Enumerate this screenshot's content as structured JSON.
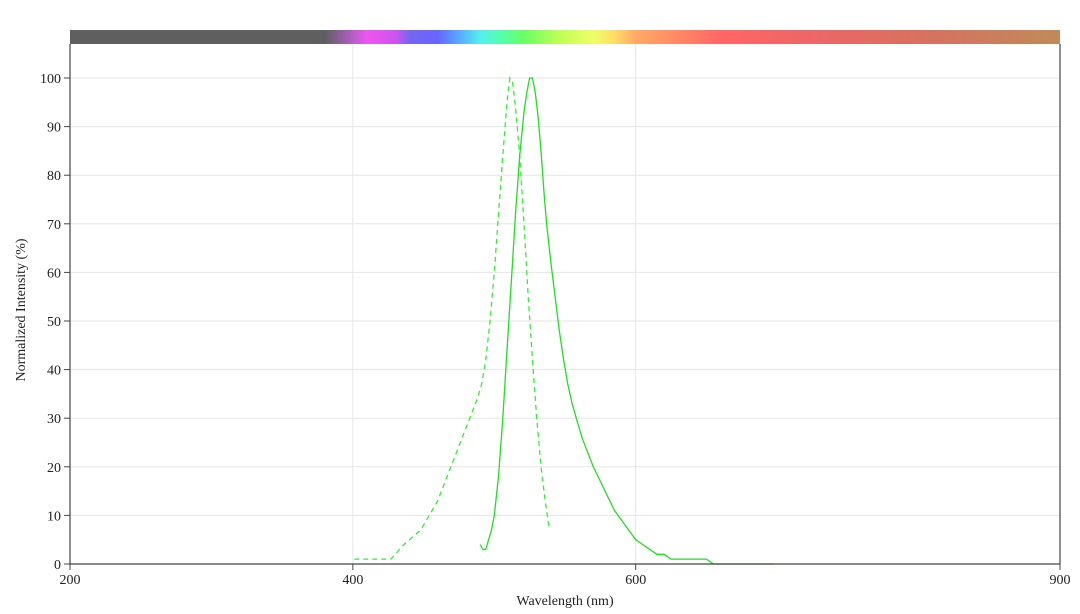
{
  "chart_data": {
    "type": "line",
    "title": "",
    "xlabel": "Wavelength (nm)",
    "ylabel": "Normalized Intensity (%)",
    "xlim": [
      200,
      900
    ],
    "ylim": [
      0,
      100
    ],
    "x_ticks": [
      200,
      400,
      600,
      900
    ],
    "y_ticks": [
      0,
      10,
      20,
      30,
      40,
      50,
      60,
      70,
      80,
      90,
      100
    ],
    "grid": true,
    "legend": "none",
    "spectrum_bar": true,
    "series": [
      {
        "style": "dashed",
        "color": "#33ee33",
        "points": [
          [
            401,
            1
          ],
          [
            405,
            1
          ],
          [
            410,
            1
          ],
          [
            415,
            1
          ],
          [
            420,
            1
          ],
          [
            425,
            1
          ],
          [
            427,
            1
          ],
          [
            430,
            2
          ],
          [
            433,
            3
          ],
          [
            436,
            4
          ],
          [
            440,
            5
          ],
          [
            444,
            6
          ],
          [
            448,
            7
          ],
          [
            452,
            9
          ],
          [
            456,
            11
          ],
          [
            460,
            13
          ],
          [
            464,
            16
          ],
          [
            468,
            19
          ],
          [
            472,
            22
          ],
          [
            476,
            25
          ],
          [
            480,
            28
          ],
          [
            484,
            31
          ],
          [
            488,
            34
          ],
          [
            491,
            37
          ],
          [
            494,
            42
          ],
          [
            497,
            50
          ],
          [
            500,
            60
          ],
          [
            503,
            72
          ],
          [
            506,
            84
          ],
          [
            509,
            95
          ],
          [
            511,
            100
          ],
          [
            513,
            99
          ],
          [
            515,
            94
          ],
          [
            518,
            84
          ],
          [
            521,
            70
          ],
          [
            524,
            55
          ],
          [
            527,
            42
          ],
          [
            530,
            30
          ],
          [
            533,
            20
          ],
          [
            536,
            13
          ],
          [
            539,
            7
          ]
        ]
      },
      {
        "style": "solid",
        "color": "#22dd22",
        "points": [
          [
            490,
            4
          ],
          [
            492,
            3
          ],
          [
            494,
            3
          ],
          [
            496,
            5
          ],
          [
            498,
            7
          ],
          [
            500,
            10
          ],
          [
            503,
            18
          ],
          [
            506,
            30
          ],
          [
            509,
            44
          ],
          [
            512,
            58
          ],
          [
            515,
            72
          ],
          [
            518,
            84
          ],
          [
            521,
            93
          ],
          [
            523,
            97
          ],
          [
            525,
            100
          ],
          [
            527,
            100
          ],
          [
            529,
            97
          ],
          [
            531,
            92
          ],
          [
            533,
            85
          ],
          [
            535,
            77
          ],
          [
            537,
            70
          ],
          [
            540,
            62
          ],
          [
            543,
            55
          ],
          [
            546,
            48
          ],
          [
            549,
            42
          ],
          [
            552,
            37
          ],
          [
            555,
            33
          ],
          [
            558,
            30
          ],
          [
            562,
            26
          ],
          [
            566,
            23
          ],
          [
            570,
            20
          ],
          [
            575,
            17
          ],
          [
            580,
            14
          ],
          [
            585,
            11
          ],
          [
            590,
            9
          ],
          [
            595,
            7
          ],
          [
            600,
            5
          ],
          [
            605,
            4
          ],
          [
            610,
            3
          ],
          [
            615,
            2
          ],
          [
            620,
            2
          ],
          [
            625,
            1
          ],
          [
            630,
            1
          ],
          [
            640,
            1
          ],
          [
            650,
            1
          ],
          [
            655,
            0
          ],
          [
            670,
            0
          ],
          [
            690,
            0
          ],
          [
            697,
            0
          ]
        ]
      }
    ]
  }
}
